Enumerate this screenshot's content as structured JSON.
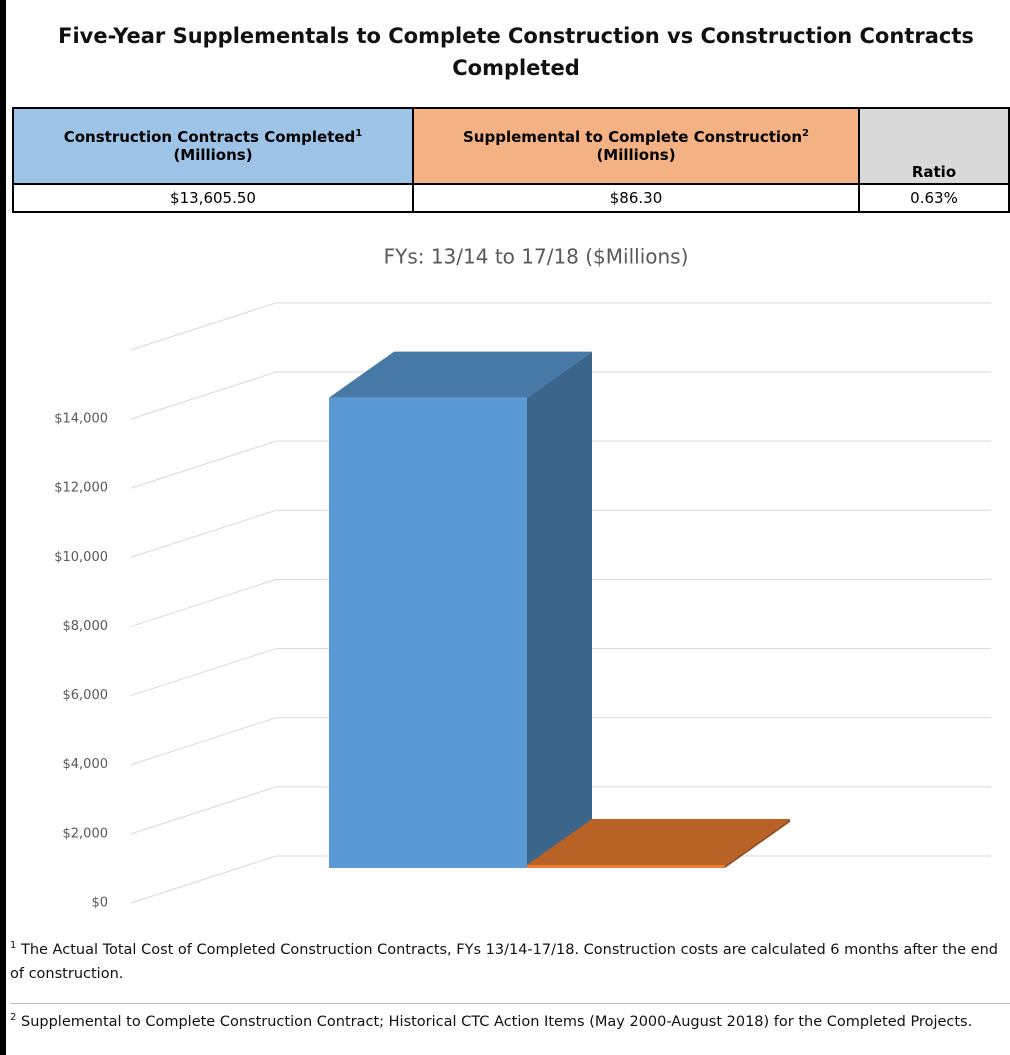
{
  "title": "Five-Year Supplementals to Complete Construction vs Construction Contracts Completed",
  "table": {
    "header": [
      {
        "text": "Construction Contracts Completed",
        "sup": "1",
        "unit": "(Millions)"
      },
      {
        "text": "Supplemental to Complete Construction",
        "sup": "2",
        "unit": "(Millions)"
      },
      {
        "text": "Ratio"
      }
    ],
    "row": [
      "$13,605.50",
      "$86.30",
      "0.63%"
    ]
  },
  "chart_data": {
    "type": "bar3d",
    "title": "FYs: 13/14 to 17/18 ($Millions)",
    "categories": [
      null,
      null
    ],
    "values": [
      13605.5,
      86.3
    ],
    "colors": [
      "#5b9bd5",
      "#ed7d31"
    ],
    "ylim": [
      0,
      16000
    ],
    "yticks": [
      {
        "value": 0,
        "label": "$0"
      },
      {
        "value": 2000,
        "label": "$2,000"
      },
      {
        "value": 4000,
        "label": "$4,000"
      },
      {
        "value": 6000,
        "label": "$6,000"
      },
      {
        "value": 8000,
        "label": "$8,000"
      },
      {
        "value": 10000,
        "label": "$10,000"
      },
      {
        "value": 12000,
        "label": "$12,000"
      },
      {
        "value": 14000,
        "label": "$14,000"
      }
    ],
    "grid": true
  },
  "footnotes": [
    {
      "marker": "1",
      "text": "The Actual Total Cost of Completed Construction Contracts, FYs 13/14-17/18.  Construction costs are calculated 6 months after the end of construction."
    },
    {
      "marker": "2",
      "text": "Supplemental to Complete Construction Contract; Historical CTC Action Items (May 2000-August 2018) for the Completed Projects."
    }
  ]
}
